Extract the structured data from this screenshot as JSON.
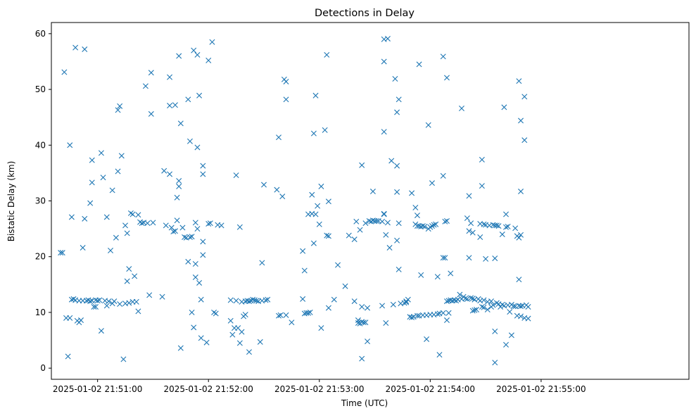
{
  "chart_data": {
    "type": "scatter",
    "title": "Detections in Delay",
    "xlabel": "Time (UTC)",
    "ylabel": "Bistatic Delay (km)",
    "marker": "x",
    "color": "#1f77b4",
    "grid": false,
    "x_ticks": [
      "2025-01-02 21:51:00",
      "2025-01-02 21:52:00",
      "2025-01-02 21:53:00",
      "2025-01-02 21:54:00",
      "2025-01-02 21:55:00"
    ],
    "y_ticks": [
      "0",
      "10",
      "20",
      "30",
      "40",
      "50",
      "60"
    ],
    "xlim": [
      "2025-01-02 21:50:35",
      "2025-01-02 21:56:20"
    ],
    "ylim": [
      -2,
      62
    ],
    "points": [
      [
        "21:50:40",
        20.7
      ],
      [
        "21:50:41",
        20.7
      ],
      [
        "21:50:42",
        53.1
      ],
      [
        "21:50:43",
        9.0
      ],
      [
        "21:50:44",
        2.1
      ],
      [
        "21:50:45",
        40.0
      ],
      [
        "21:50:45",
        9.0
      ],
      [
        "21:50:46",
        27.1
      ],
      [
        "21:50:46",
        12.3
      ],
      [
        "21:50:47",
        12.4
      ],
      [
        "21:50:48",
        57.5
      ],
      [
        "21:50:48",
        12.2
      ],
      [
        "21:50:49",
        8.5
      ],
      [
        "21:50:50",
        8.2
      ],
      [
        "21:50:50",
        12.1
      ],
      [
        "21:50:51",
        8.6
      ],
      [
        "21:50:52",
        21.6
      ],
      [
        "21:50:52",
        12.1
      ],
      [
        "21:50:53",
        57.2
      ],
      [
        "21:50:53",
        26.8
      ],
      [
        "21:50:54",
        12.1
      ],
      [
        "21:50:55",
        12.2
      ],
      [
        "21:50:56",
        29.6
      ],
      [
        "21:50:56",
        12.0
      ],
      [
        "21:50:57",
        33.3
      ],
      [
        "21:50:57",
        37.3
      ],
      [
        "21:50:57",
        12.1
      ],
      [
        "21:50:58",
        11.0
      ],
      [
        "21:50:59",
        11.0
      ],
      [
        "21:50:59",
        12.2
      ],
      [
        "21:51:00",
        12.1
      ],
      [
        "21:51:01",
        12.2
      ],
      [
        "21:51:02",
        38.6
      ],
      [
        "21:51:02",
        6.7
      ],
      [
        "21:51:03",
        34.2
      ],
      [
        "21:51:04",
        12.1
      ],
      [
        "21:51:05",
        27.1
      ],
      [
        "21:51:05",
        11.2
      ],
      [
        "21:51:06",
        12.0
      ],
      [
        "21:51:07",
        21.1
      ],
      [
        "21:51:08",
        31.9
      ],
      [
        "21:51:08",
        11.6
      ],
      [
        "21:51:09",
        12.0
      ],
      [
        "21:51:10",
        23.4
      ],
      [
        "21:51:11",
        46.3
      ],
      [
        "21:51:11",
        35.3
      ],
      [
        "21:51:12",
        47.0
      ],
      [
        "21:51:12",
        11.5
      ],
      [
        "21:51:13",
        38.1
      ],
      [
        "21:51:14",
        1.6
      ],
      [
        "21:51:15",
        11.6
      ],
      [
        "21:51:15",
        25.6
      ],
      [
        "21:51:16",
        24.2
      ],
      [
        "21:51:16",
        15.6
      ],
      [
        "21:51:17",
        17.8
      ],
      [
        "21:51:17",
        11.7
      ],
      [
        "21:51:18",
        27.8
      ],
      [
        "21:51:19",
        27.6
      ],
      [
        "21:51:19",
        11.9
      ],
      [
        "21:51:20",
        16.5
      ],
      [
        "21:51:21",
        11.9
      ],
      [
        "21:51:22",
        10.2
      ],
      [
        "21:51:22",
        27.5
      ],
      [
        "21:51:23",
        26.2
      ],
      [
        "21:51:24",
        26.0
      ],
      [
        "21:51:25",
        26.1
      ],
      [
        "21:51:26",
        50.6
      ],
      [
        "21:51:27",
        26.0
      ],
      [
        "21:51:28",
        13.1
      ],
      [
        "21:51:29",
        45.6
      ],
      [
        "21:51:29",
        53.0
      ],
      [
        "21:51:30",
        26.1
      ],
      [
        "21:51:35",
        12.8
      ],
      [
        "21:51:36",
        35.4
      ],
      [
        "21:51:37",
        25.6
      ],
      [
        "21:51:39",
        52.2
      ],
      [
        "21:51:39",
        47.1
      ],
      [
        "21:51:39",
        34.8
      ],
      [
        "21:51:40",
        25.2
      ],
      [
        "21:51:41",
        24.5
      ],
      [
        "21:51:42",
        47.2
      ],
      [
        "21:51:42",
        24.6
      ],
      [
        "21:51:43",
        30.6
      ],
      [
        "21:51:43",
        26.5
      ],
      [
        "21:51:44",
        56.0
      ],
      [
        "21:51:44",
        33.6
      ],
      [
        "21:51:44",
        32.6
      ],
      [
        "21:51:45",
        43.9
      ],
      [
        "21:51:45",
        3.6
      ],
      [
        "21:51:46",
        25.2
      ],
      [
        "21:51:47",
        23.5
      ],
      [
        "21:51:48",
        23.4
      ],
      [
        "21:51:49",
        19.1
      ],
      [
        "21:51:49",
        48.2
      ],
      [
        "21:51:50",
        40.7
      ],
      [
        "21:51:50",
        23.5
      ],
      [
        "21:51:51",
        10.0
      ],
      [
        "21:51:51",
        23.6
      ],
      [
        "21:51:52",
        7.3
      ],
      [
        "21:51:52",
        57.0
      ],
      [
        "21:51:53",
        18.7
      ],
      [
        "21:51:53",
        16.3
      ],
      [
        "21:51:53",
        26.1
      ],
      [
        "21:51:54",
        56.2
      ],
      [
        "21:51:54",
        39.6
      ],
      [
        "21:51:54",
        25.0
      ],
      [
        "21:51:55",
        15.3
      ],
      [
        "21:51:55",
        48.9
      ],
      [
        "21:51:56",
        12.3
      ],
      [
        "21:51:56",
        5.4
      ],
      [
        "21:51:57",
        36.3
      ],
      [
        "21:51:57",
        34.8
      ],
      [
        "21:51:57",
        22.7
      ],
      [
        "21:51:57",
        20.3
      ],
      [
        "21:51:59",
        4.6
      ],
      [
        "21:52:00",
        55.2
      ],
      [
        "21:52:00",
        25.9
      ],
      [
        "21:52:01",
        26.0
      ],
      [
        "21:52:02",
        58.5
      ],
      [
        "21:52:03",
        10.0
      ],
      [
        "21:52:04",
        9.8
      ],
      [
        "21:52:05",
        25.7
      ],
      [
        "21:52:07",
        25.6
      ],
      [
        "21:52:12",
        12.2
      ],
      [
        "21:52:12",
        8.5
      ],
      [
        "21:52:13",
        6.0
      ],
      [
        "21:52:14",
        7.2
      ],
      [
        "21:52:15",
        34.6
      ],
      [
        "21:52:15",
        12.1
      ],
      [
        "21:52:16",
        7.2
      ],
      [
        "21:52:17",
        25.3
      ],
      [
        "21:52:17",
        4.5
      ],
      [
        "21:52:18",
        6.5
      ],
      [
        "21:52:18",
        11.9
      ],
      [
        "21:52:19",
        9.3
      ],
      [
        "21:52:20",
        12.0
      ],
      [
        "21:52:20",
        9.6
      ],
      [
        "21:52:21",
        12.1
      ],
      [
        "21:52:22",
        12.0
      ],
      [
        "21:52:22",
        2.9
      ],
      [
        "21:52:23",
        12.1
      ],
      [
        "21:52:24",
        12.3
      ],
      [
        "21:52:25",
        12.2
      ],
      [
        "21:52:26",
        12.1
      ],
      [
        "21:52:27",
        12.0
      ],
      [
        "21:52:28",
        4.7
      ],
      [
        "21:52:29",
        12.1
      ],
      [
        "21:52:29",
        18.9
      ],
      [
        "21:52:30",
        32.9
      ],
      [
        "21:52:31",
        12.2
      ],
      [
        "21:52:32",
        12.3
      ],
      [
        "21:52:37",
        32.0
      ],
      [
        "21:52:38",
        41.4
      ],
      [
        "21:52:38",
        9.4
      ],
      [
        "21:52:39",
        9.5
      ],
      [
        "21:52:40",
        30.8
      ],
      [
        "21:52:41",
        51.8
      ],
      [
        "21:52:42",
        51.4
      ],
      [
        "21:52:42",
        48.2
      ],
      [
        "21:52:42",
        9.5
      ],
      [
        "21:52:45",
        8.2
      ],
      [
        "21:52:51",
        21.0
      ],
      [
        "21:52:51",
        12.4
      ],
      [
        "21:52:52",
        9.8
      ],
      [
        "21:52:52",
        17.5
      ],
      [
        "21:52:53",
        9.9
      ],
      [
        "21:52:54",
        27.6
      ],
      [
        "21:52:54",
        9.9
      ],
      [
        "21:52:55",
        10.0
      ],
      [
        "21:52:56",
        27.7
      ],
      [
        "21:52:56",
        31.1
      ],
      [
        "21:52:57",
        42.1
      ],
      [
        "21:52:57",
        22.4
      ],
      [
        "21:52:58",
        27.6
      ],
      [
        "21:52:58",
        48.9
      ],
      [
        "21:52:59",
        29.1
      ],
      [
        "21:53:00",
        25.8
      ],
      [
        "21:53:01",
        32.6
      ],
      [
        "21:53:01",
        7.2
      ],
      [
        "21:53:03",
        42.7
      ],
      [
        "21:53:04",
        23.8
      ],
      [
        "21:53:04",
        56.2
      ],
      [
        "21:53:05",
        23.7
      ],
      [
        "21:53:05",
        29.9
      ],
      [
        "21:53:05",
        10.8
      ],
      [
        "21:53:08",
        12.3
      ],
      [
        "21:53:10",
        18.5
      ],
      [
        "21:53:14",
        14.7
      ],
      [
        "21:53:16",
        23.8
      ],
      [
        "21:53:19",
        12.0
      ],
      [
        "21:53:19",
        23.1
      ],
      [
        "21:53:20",
        26.3
      ],
      [
        "21:53:21",
        8.6
      ],
      [
        "21:53:21",
        8.1
      ],
      [
        "21:53:22",
        8.0
      ],
      [
        "21:53:22",
        24.8
      ],
      [
        "21:53:23",
        36.4
      ],
      [
        "21:53:23",
        11.0
      ],
      [
        "21:53:23",
        8.3
      ],
      [
        "21:53:23",
        1.7
      ],
      [
        "21:53:24",
        8.2
      ],
      [
        "21:53:25",
        8.2
      ],
      [
        "21:53:25",
        26.0
      ],
      [
        "21:53:26",
        4.8
      ],
      [
        "21:53:26",
        10.8
      ],
      [
        "21:53:27",
        26.4
      ],
      [
        "21:53:28",
        26.3
      ],
      [
        "21:53:29",
        31.7
      ],
      [
        "21:53:29",
        26.5
      ],
      [
        "21:53:30",
        26.4
      ],
      [
        "21:53:31",
        26.4
      ],
      [
        "21:53:32",
        26.4
      ],
      [
        "21:53:34",
        11.2
      ],
      [
        "21:53:34",
        26.3
      ],
      [
        "21:53:35",
        27.7
      ],
      [
        "21:53:35",
        27.6
      ],
      [
        "21:53:35",
        59.0
      ],
      [
        "21:53:35",
        55.0
      ],
      [
        "21:53:35",
        42.4
      ],
      [
        "21:53:36",
        23.9
      ],
      [
        "21:53:36",
        8.1
      ],
      [
        "21:53:37",
        59.1
      ],
      [
        "21:53:37",
        26.1
      ],
      [
        "21:53:38",
        21.6
      ],
      [
        "21:53:39",
        37.2
      ],
      [
        "21:53:40",
        11.4
      ],
      [
        "21:53:41",
        51.9
      ],
      [
        "21:53:42",
        45.9
      ],
      [
        "21:53:42",
        31.6
      ],
      [
        "21:53:42",
        36.3
      ],
      [
        "21:53:42",
        22.9
      ],
      [
        "21:53:43",
        48.2
      ],
      [
        "21:53:43",
        26.0
      ],
      [
        "21:53:43",
        17.7
      ],
      [
        "21:53:44",
        11.6
      ],
      [
        "21:53:46",
        11.7
      ],
      [
        "21:53:47",
        11.8
      ],
      [
        "21:53:47",
        12.0
      ],
      [
        "21:53:48",
        12.3
      ],
      [
        "21:53:49",
        9.2
      ],
      [
        "21:53:50",
        9.1
      ],
      [
        "21:53:50",
        31.4
      ],
      [
        "21:53:51",
        9.2
      ],
      [
        "21:53:52",
        28.8
      ],
      [
        "21:53:52",
        25.8
      ],
      [
        "21:53:53",
        9.4
      ],
      [
        "21:53:53",
        25.5
      ],
      [
        "21:53:53",
        27.4
      ],
      [
        "21:53:54",
        25.5
      ],
      [
        "21:53:54",
        54.5
      ],
      [
        "21:53:54",
        9.4
      ],
      [
        "21:53:55",
        25.4
      ],
      [
        "21:53:55",
        16.7
      ],
      [
        "21:53:56",
        25.5
      ],
      [
        "21:53:56",
        9.5
      ],
      [
        "21:53:57",
        25.4
      ],
      [
        "21:53:58",
        9.5
      ],
      [
        "21:53:58",
        5.2
      ],
      [
        "21:53:59",
        43.6
      ],
      [
        "21:53:59",
        25.0
      ],
      [
        "21:54:00",
        25.3
      ],
      [
        "21:54:00",
        9.6
      ],
      [
        "21:54:01",
        33.2
      ],
      [
        "21:54:01",
        25.5
      ],
      [
        "21:54:02",
        25.7
      ],
      [
        "21:54:02",
        9.6
      ],
      [
        "21:54:03",
        25.8
      ],
      [
        "21:54:04",
        16.4
      ],
      [
        "21:54:04",
        9.7
      ],
      [
        "21:54:05",
        2.4
      ],
      [
        "21:54:05",
        9.8
      ],
      [
        "21:54:07",
        55.9
      ],
      [
        "21:54:07",
        34.5
      ],
      [
        "21:54:07",
        19.8
      ],
      [
        "21:54:07",
        9.9
      ],
      [
        "21:54:08",
        26.3
      ],
      [
        "21:54:08",
        19.8
      ],
      [
        "21:54:09",
        26.4
      ],
      [
        "21:54:09",
        8.6
      ],
      [
        "21:54:09",
        12.0
      ],
      [
        "21:54:09",
        52.1
      ],
      [
        "21:54:10",
        12.1
      ],
      [
        "21:54:10",
        9.9
      ],
      [
        "21:54:11",
        17.0
      ],
      [
        "21:54:11",
        12.2
      ],
      [
        "21:54:12",
        12.1
      ],
      [
        "21:54:13",
        12.2
      ],
      [
        "21:54:14",
        12.1
      ],
      [
        "21:54:15",
        12.3
      ],
      [
        "21:54:16",
        13.2
      ],
      [
        "21:54:17",
        46.6
      ],
      [
        "21:54:17",
        12.4
      ],
      [
        "21:54:18",
        12.8
      ],
      [
        "21:54:19",
        12.5
      ],
      [
        "21:54:20",
        26.9
      ],
      [
        "21:54:20",
        12.4
      ],
      [
        "21:54:21",
        19.8
      ],
      [
        "21:54:21",
        30.9
      ],
      [
        "21:54:21",
        24.6
      ],
      [
        "21:54:22",
        12.6
      ],
      [
        "21:54:22",
        26.0
      ],
      [
        "21:54:23",
        10.3
      ],
      [
        "21:54:23",
        12.5
      ],
      [
        "21:54:23",
        24.3
      ],
      [
        "21:54:24",
        10.4
      ],
      [
        "21:54:24",
        12.3
      ],
      [
        "21:54:25",
        10.5
      ],
      [
        "21:54:26",
        12.4
      ],
      [
        "21:54:27",
        23.5
      ],
      [
        "21:54:27",
        25.9
      ],
      [
        "21:54:27",
        12.1
      ],
      [
        "21:54:28",
        32.7
      ],
      [
        "21:54:28",
        37.4
      ],
      [
        "21:54:28",
        11.0
      ],
      [
        "21:54:29",
        25.8
      ],
      [
        "21:54:29",
        10.9
      ],
      [
        "21:54:29",
        12.2
      ],
      [
        "21:54:30",
        19.6
      ],
      [
        "21:54:30",
        25.7
      ],
      [
        "21:54:31",
        11.9
      ],
      [
        "21:54:31",
        10.5
      ],
      [
        "21:54:32",
        25.6
      ],
      [
        "21:54:33",
        12.0
      ],
      [
        "21:54:33",
        11.0
      ],
      [
        "21:54:34",
        25.7
      ],
      [
        "21:54:34",
        11.3
      ],
      [
        "21:54:35",
        25.6
      ],
      [
        "21:54:35",
        19.7
      ],
      [
        "21:54:35",
        6.6
      ],
      [
        "21:54:35",
        1.0
      ],
      [
        "21:54:36",
        11.7
      ],
      [
        "21:54:36",
        25.6
      ],
      [
        "21:54:37",
        11.5
      ],
      [
        "21:54:37",
        25.5
      ],
      [
        "21:54:38",
        11.0
      ],
      [
        "21:54:39",
        11.4
      ],
      [
        "21:54:39",
        24.0
      ],
      [
        "21:54:40",
        46.8
      ],
      [
        "21:54:40",
        11.2
      ],
      [
        "21:54:41",
        4.2
      ],
      [
        "21:54:41",
        25.3
      ],
      [
        "21:54:41",
        27.6
      ],
      [
        "21:54:42",
        11.3
      ],
      [
        "21:54:42",
        25.4
      ],
      [
        "21:54:43",
        10.1
      ],
      [
        "21:54:44",
        5.9
      ],
      [
        "21:54:44",
        11.4
      ],
      [
        "21:54:45",
        11.1
      ],
      [
        "21:54:46",
        25.1
      ],
      [
        "21:54:46",
        11.1
      ],
      [
        "21:54:47",
        9.4
      ],
      [
        "21:54:47",
        23.7
      ],
      [
        "21:54:48",
        11.2
      ],
      [
        "21:54:48",
        23.4
      ],
      [
        "21:54:48",
        15.9
      ],
      [
        "21:54:48",
        51.5
      ],
      [
        "21:54:49",
        44.4
      ],
      [
        "21:54:49",
        31.7
      ],
      [
        "21:54:49",
        23.9
      ],
      [
        "21:54:49",
        11.1
      ],
      [
        "21:54:49",
        9.3
      ],
      [
        "21:54:50",
        11.2
      ],
      [
        "21:54:51",
        48.7
      ],
      [
        "21:54:51",
        40.9
      ],
      [
        "21:54:51",
        9.0
      ],
      [
        "21:54:52",
        11.3
      ],
      [
        "21:54:53",
        11.0
      ],
      [
        "21:54:53",
        8.9
      ]
    ]
  }
}
